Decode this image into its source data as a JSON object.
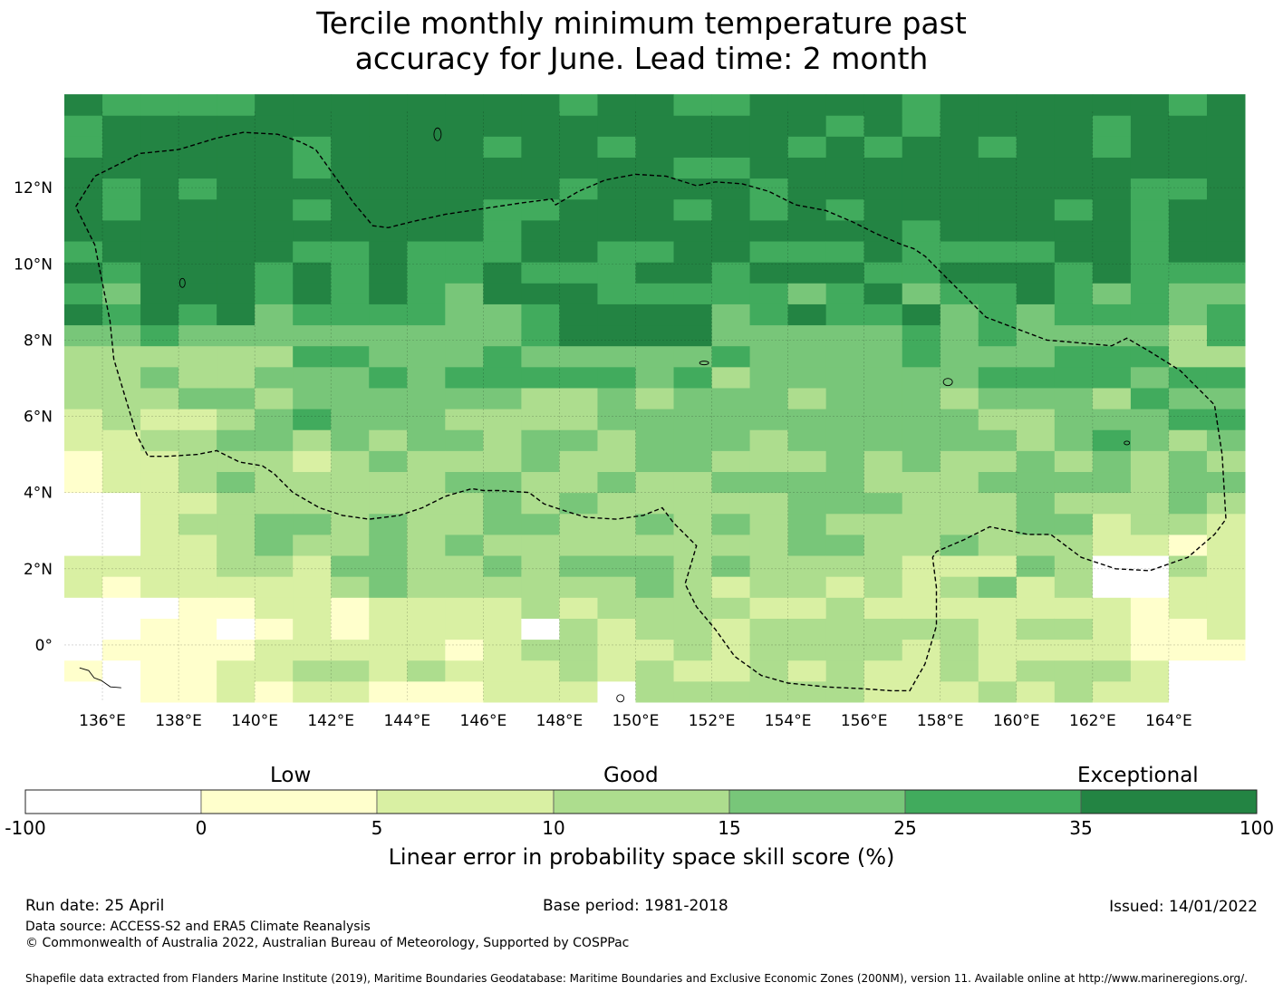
{
  "title_line1": "Tercile monthly minimum temperature past",
  "title_line2": "accuracy for June. Lead time: 2 month",
  "map": {
    "lon_labels": [
      "136°E",
      "138°E",
      "140°E",
      "142°E",
      "144°E",
      "146°E",
      "148°E",
      "150°E",
      "152°E",
      "154°E",
      "156°E",
      "158°E",
      "160°E",
      "162°E",
      "164°E"
    ],
    "lon_values": [
      136,
      138,
      140,
      142,
      144,
      146,
      148,
      150,
      152,
      154,
      156,
      158,
      160,
      162,
      164
    ],
    "lat_labels": [
      "12°N",
      "10°N",
      "8°N",
      "6°N",
      "4°N",
      "2°N",
      "0°"
    ],
    "lat_values": [
      12,
      10,
      8,
      6,
      4,
      2,
      0
    ],
    "lon_range": [
      135,
      166
    ],
    "lat_range": [
      -1.5,
      14
    ],
    "grid": true,
    "eez_boundary": [
      [
        135.3,
        11.5
      ],
      [
        135.8,
        12.3
      ],
      [
        137,
        12.9
      ],
      [
        138,
        13.0
      ],
      [
        139,
        13.3
      ],
      [
        139.7,
        13.45
      ],
      [
        140.6,
        13.4
      ],
      [
        141.2,
        13.2
      ],
      [
        141.6,
        13.0
      ],
      [
        142.1,
        12.3
      ],
      [
        142.6,
        11.6
      ],
      [
        143.1,
        11.0
      ],
      [
        143.5,
        10.95
      ],
      [
        144.1,
        11.1
      ],
      [
        145,
        11.3
      ],
      [
        146,
        11.45
      ],
      [
        147,
        11.6
      ],
      [
        147.8,
        11.7
      ],
      [
        147.9,
        11.55
      ],
      [
        148.5,
        11.9
      ],
      [
        149.2,
        12.2
      ],
      [
        150,
        12.35
      ],
      [
        150.8,
        12.3
      ],
      [
        151.6,
        12.05
      ],
      [
        152.1,
        12.15
      ],
      [
        152.8,
        12.1
      ],
      [
        153.5,
        11.9
      ],
      [
        154.2,
        11.55
      ],
      [
        155,
        11.4
      ],
      [
        155.7,
        11.1
      ],
      [
        156.3,
        10.8
      ],
      [
        157,
        10.5
      ],
      [
        157.3,
        10.4
      ],
      [
        157.6,
        10.2
      ],
      [
        158,
        9.8
      ],
      [
        158.6,
        9.2
      ],
      [
        159.2,
        8.6
      ],
      [
        160,
        8.3
      ],
      [
        160.8,
        8.0
      ],
      [
        161.4,
        7.95
      ],
      [
        162.5,
        7.85
      ],
      [
        162.9,
        8.05
      ],
      [
        163.5,
        7.7
      ],
      [
        164.3,
        7.2
      ],
      [
        165.2,
        6.3
      ],
      [
        165.4,
        5.0
      ],
      [
        165.5,
        3.3
      ],
      [
        165.2,
        2.9
      ],
      [
        164.5,
        2.3
      ],
      [
        163.5,
        1.95
      ],
      [
        162.6,
        2.0
      ],
      [
        161.7,
        2.3
      ],
      [
        160.9,
        2.9
      ],
      [
        160.3,
        2.9
      ],
      [
        159.3,
        3.1
      ],
      [
        158.6,
        2.75
      ],
      [
        157.9,
        2.45
      ],
      [
        157.8,
        2.3
      ],
      [
        157.9,
        1.5
      ],
      [
        157.9,
        0.5
      ],
      [
        157.6,
        -0.5
      ],
      [
        157.2,
        -1.2
      ],
      [
        156.7,
        -1.2
      ],
      [
        156,
        -1.15
      ],
      [
        155,
        -1.1
      ],
      [
        154,
        -1.0
      ],
      [
        153.3,
        -0.8
      ],
      [
        152.6,
        -0.3
      ],
      [
        152.1,
        0.4
      ],
      [
        151.6,
        1.0
      ],
      [
        151.3,
        1.6
      ],
      [
        151.6,
        2.6
      ],
      [
        151.0,
        3.2
      ],
      [
        150.7,
        3.6
      ],
      [
        150.2,
        3.4
      ],
      [
        149.5,
        3.3
      ],
      [
        148.7,
        3.35
      ],
      [
        148.2,
        3.5
      ],
      [
        147.6,
        3.7
      ],
      [
        147.2,
        4.0
      ],
      [
        146.4,
        4.05
      ],
      [
        146,
        4.05
      ],
      [
        145.7,
        4.1
      ],
      [
        145,
        3.9
      ],
      [
        144.4,
        3.6
      ],
      [
        143.8,
        3.4
      ],
      [
        143,
        3.3
      ],
      [
        142.3,
        3.4
      ],
      [
        141.7,
        3.6
      ],
      [
        141,
        4.0
      ],
      [
        140.5,
        4.5
      ],
      [
        140.2,
        4.7
      ],
      [
        139.6,
        4.8
      ],
      [
        139,
        5.1
      ],
      [
        138.5,
        5.0
      ],
      [
        137.7,
        4.95
      ],
      [
        137.2,
        4.95
      ],
      [
        136.9,
        5.5
      ],
      [
        136.3,
        7.5
      ],
      [
        136.2,
        8.5
      ],
      [
        136.0,
        9.5
      ],
      [
        135.8,
        10.5
      ],
      [
        135.3,
        11.5
      ]
    ]
  },
  "colorbar": {
    "category_labels": [
      "Low",
      "Good",
      "Exceptional"
    ],
    "boundaries": [
      "-100",
      "0",
      "5",
      "10",
      "15",
      "25",
      "35",
      "100"
    ],
    "colors": [
      "#ffffff",
      "#ffffcc",
      "#d9f0a3",
      "#addd8e",
      "#78c679",
      "#41ab5d",
      "#238443"
    ],
    "label": "Linear error in probability space skill score (%)"
  },
  "footer": {
    "run_date": "Run date: 25 April",
    "base_period": "Base period: 1981-2018",
    "issued": "Issued: 14/01/2022",
    "data_source": "Data source: ACCESS-S2 and ERA5 Climate Reanalysis",
    "copyright": "© Commonwealth of Australia 2022, Australian Bureau of Meteorology, Supported by COSPPac",
    "shapefile": "Shapefile data extracted from Flanders Marine Institute (2019), Maritime Boundaries Geodatabase: Maritime Boundaries and Exclusive Economic Zones (200NM), version 11. Available online at http://www.marineregions.org/."
  }
}
